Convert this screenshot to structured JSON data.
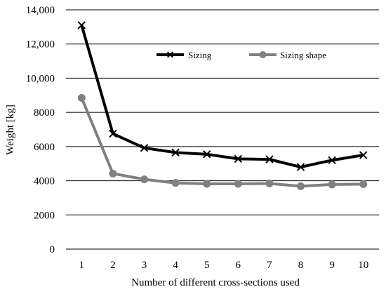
{
  "chart_data": {
    "type": "line",
    "xlabel": "Number of different cross-sections used",
    "ylabel": "Weight [kg]",
    "categories": [
      "1",
      "2",
      "3",
      "4",
      "5",
      "6",
      "7",
      "8",
      "9",
      "10"
    ],
    "ylim": [
      0,
      14000
    ],
    "y_ticks": [
      0,
      2000,
      4000,
      6000,
      8000,
      10000,
      12000,
      14000
    ],
    "y_tick_labels": [
      "0",
      "2000",
      "4000",
      "6000",
      "8000",
      "10,000",
      "12,000",
      "14,000"
    ],
    "grid": "horizontal",
    "legend_position": "top-right",
    "series": [
      {
        "name": "Sizing",
        "color": "#000000",
        "marker": "x-mark",
        "values": [
          13100,
          6750,
          5920,
          5650,
          5550,
          5280,
          5250,
          4800,
          5200,
          5500
        ]
      },
      {
        "name": "Sizing shape",
        "color": "#808080",
        "marker": "circle-marker",
        "values": [
          8850,
          4420,
          4080,
          3870,
          3820,
          3820,
          3840,
          3680,
          3780,
          3800
        ]
      }
    ]
  }
}
